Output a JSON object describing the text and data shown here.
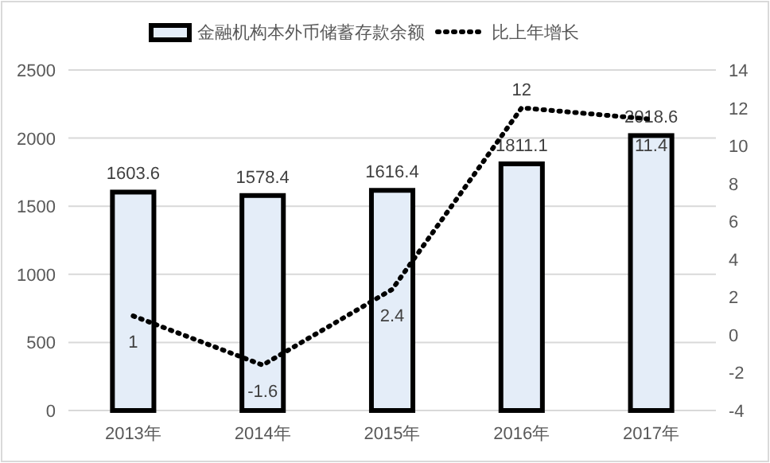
{
  "chart_data": {
    "type": "bar",
    "categories": [
      "2013年",
      "2014年",
      "2015年",
      "2016年",
      "2017年"
    ],
    "series": [
      {
        "name": "金融机构本外币储蓄存款余额",
        "color": "#e4edf8",
        "values": [
          1603.6,
          1578.4,
          1616.4,
          1811.1,
          2018.6
        ]
      },
      {
        "name": "比上年增长",
        "type": "line",
        "axis": "y2",
        "color": "#000000",
        "values": [
          1,
          -1.6,
          2.4,
          12,
          11.4
        ],
        "line_style": "dotted",
        "marker": "none"
      }
    ],
    "ylim": [
      0,
      2500
    ],
    "yticks": [
      0,
      500,
      1000,
      1500,
      2000,
      2500
    ],
    "y2lim": [
      -4,
      14
    ],
    "y2ticks": [
      -4,
      -2,
      0,
      2,
      4,
      6,
      8,
      10,
      12,
      14
    ],
    "grid": "y",
    "legend": "top",
    "data_labels": true
  }
}
